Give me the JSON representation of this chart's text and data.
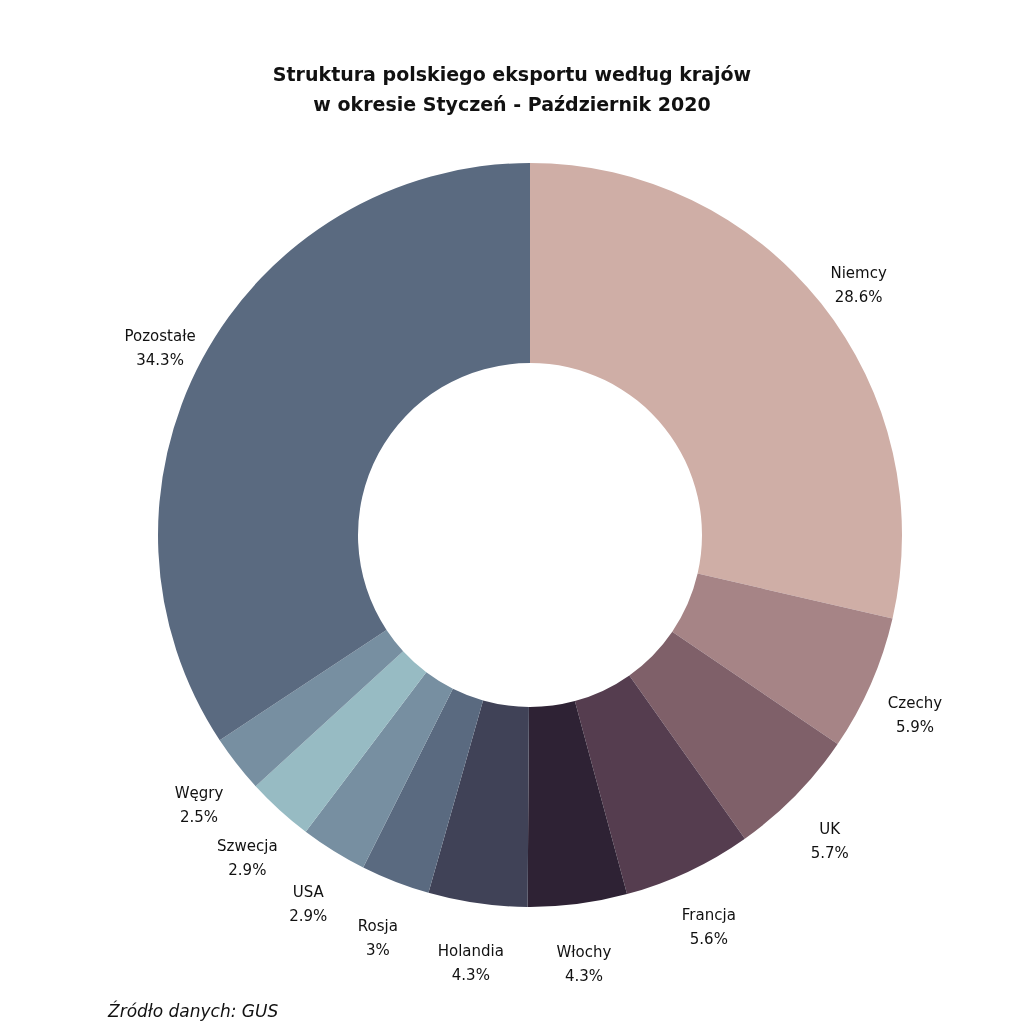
{
  "chart_data": {
    "type": "donut",
    "title": "Struktura polskiego eksportu według krajów w okresie Styczeń - Październik 2020",
    "categories": [
      "Niemcy",
      "Czechy",
      "UK",
      "Francja",
      "Włochy",
      "Holandia",
      "Rosja",
      "USA",
      "Szwecja",
      "Węgry",
      "Pozostałe"
    ],
    "values": [
      28.6,
      5.9,
      5.7,
      5.6,
      4.3,
      4.3,
      3,
      2.9,
      2.9,
      2.5,
      34.3
    ],
    "value_labels": [
      "28.6%",
      "5.9%",
      "5.7%",
      "5.6%",
      "4.3%",
      "4.3%",
      "3%",
      "2.9%",
      "2.9%",
      "2.5%",
      "34.3%"
    ],
    "colors": [
      "#cfaea6",
      "#a68486",
      "#7f6069",
      "#553d4f",
      "#2e2234",
      "#404257",
      "#5a6a80",
      "#778fa1",
      "#97bbc3",
      "#778fa1",
      "#5a6a80"
    ],
    "annotations": [
      "Źródło danych: GUS"
    ]
  }
}
